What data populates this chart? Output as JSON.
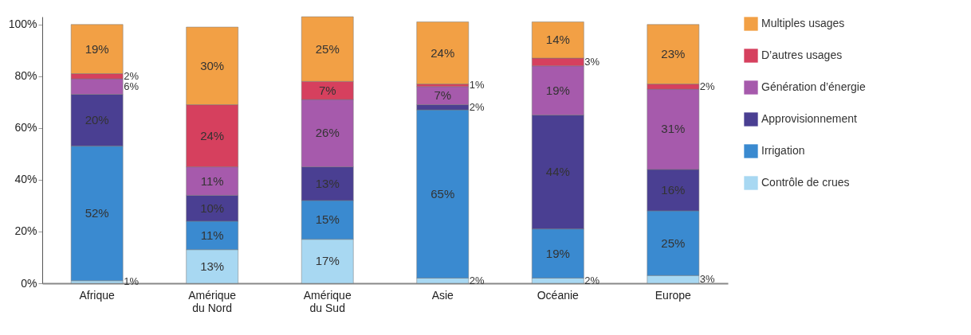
{
  "chart_data": {
    "type": "bar",
    "stacked": true,
    "categories": [
      "Afrique",
      "Amérique\ndu Nord",
      "Amérique\ndu Sud",
      "Asie",
      "Océanie",
      "Europe"
    ],
    "series": [
      {
        "name": "Contrôle de crues",
        "color": "#a8d8f2",
        "values": [
          1,
          13,
          17,
          2,
          2,
          3
        ],
        "value_labels": [
          "1%",
          "13%",
          "17%",
          "2%",
          "2%",
          "3%"
        ]
      },
      {
        "name": "Irrigation",
        "color": "#3a8ad0",
        "values": [
          52,
          11,
          15,
          65,
          19,
          25
        ],
        "value_labels": [
          "52%",
          "11%",
          "15%",
          "65%",
          "19%",
          "25%"
        ]
      },
      {
        "name": "Approvisionnement",
        "color": "#4a3f92",
        "values": [
          20,
          10,
          13,
          2,
          44,
          16
        ],
        "value_labels": [
          "20%",
          "10%",
          "13%",
          "2%",
          "44%",
          "16%"
        ]
      },
      {
        "name": "Génération d’énergie",
        "color": "#a65aac",
        "values": [
          6,
          11,
          26,
          7,
          19,
          31
        ],
        "value_labels": [
          "6%",
          "11%",
          "26%",
          "7%",
          "19%",
          "31%"
        ]
      },
      {
        "name": "D’autres usages",
        "color": "#d6405e",
        "values": [
          2,
          24,
          7,
          1,
          3,
          2
        ],
        "value_labels": [
          "2%",
          "24%",
          "7%",
          "1%",
          "3%",
          "2%"
        ]
      },
      {
        "name": "Multiples usages",
        "color": "#f2a045",
        "values": [
          19,
          30,
          25,
          24,
          14,
          23
        ],
        "value_labels": [
          "19%",
          "30%",
          "25%",
          "24%",
          "14%",
          "23%"
        ]
      }
    ],
    "ylim": [
      0,
      103
    ],
    "yticks": [
      {
        "value": 0,
        "label": "0%"
      },
      {
        "value": 20,
        "label": "20%"
      },
      {
        "value": 40,
        "label": "40%"
      },
      {
        "value": 60,
        "label": "60%"
      },
      {
        "value": 80,
        "label": "80%"
      },
      {
        "value": 100,
        "label": "100%"
      }
    ],
    "grid": false,
    "legend": "right"
  }
}
